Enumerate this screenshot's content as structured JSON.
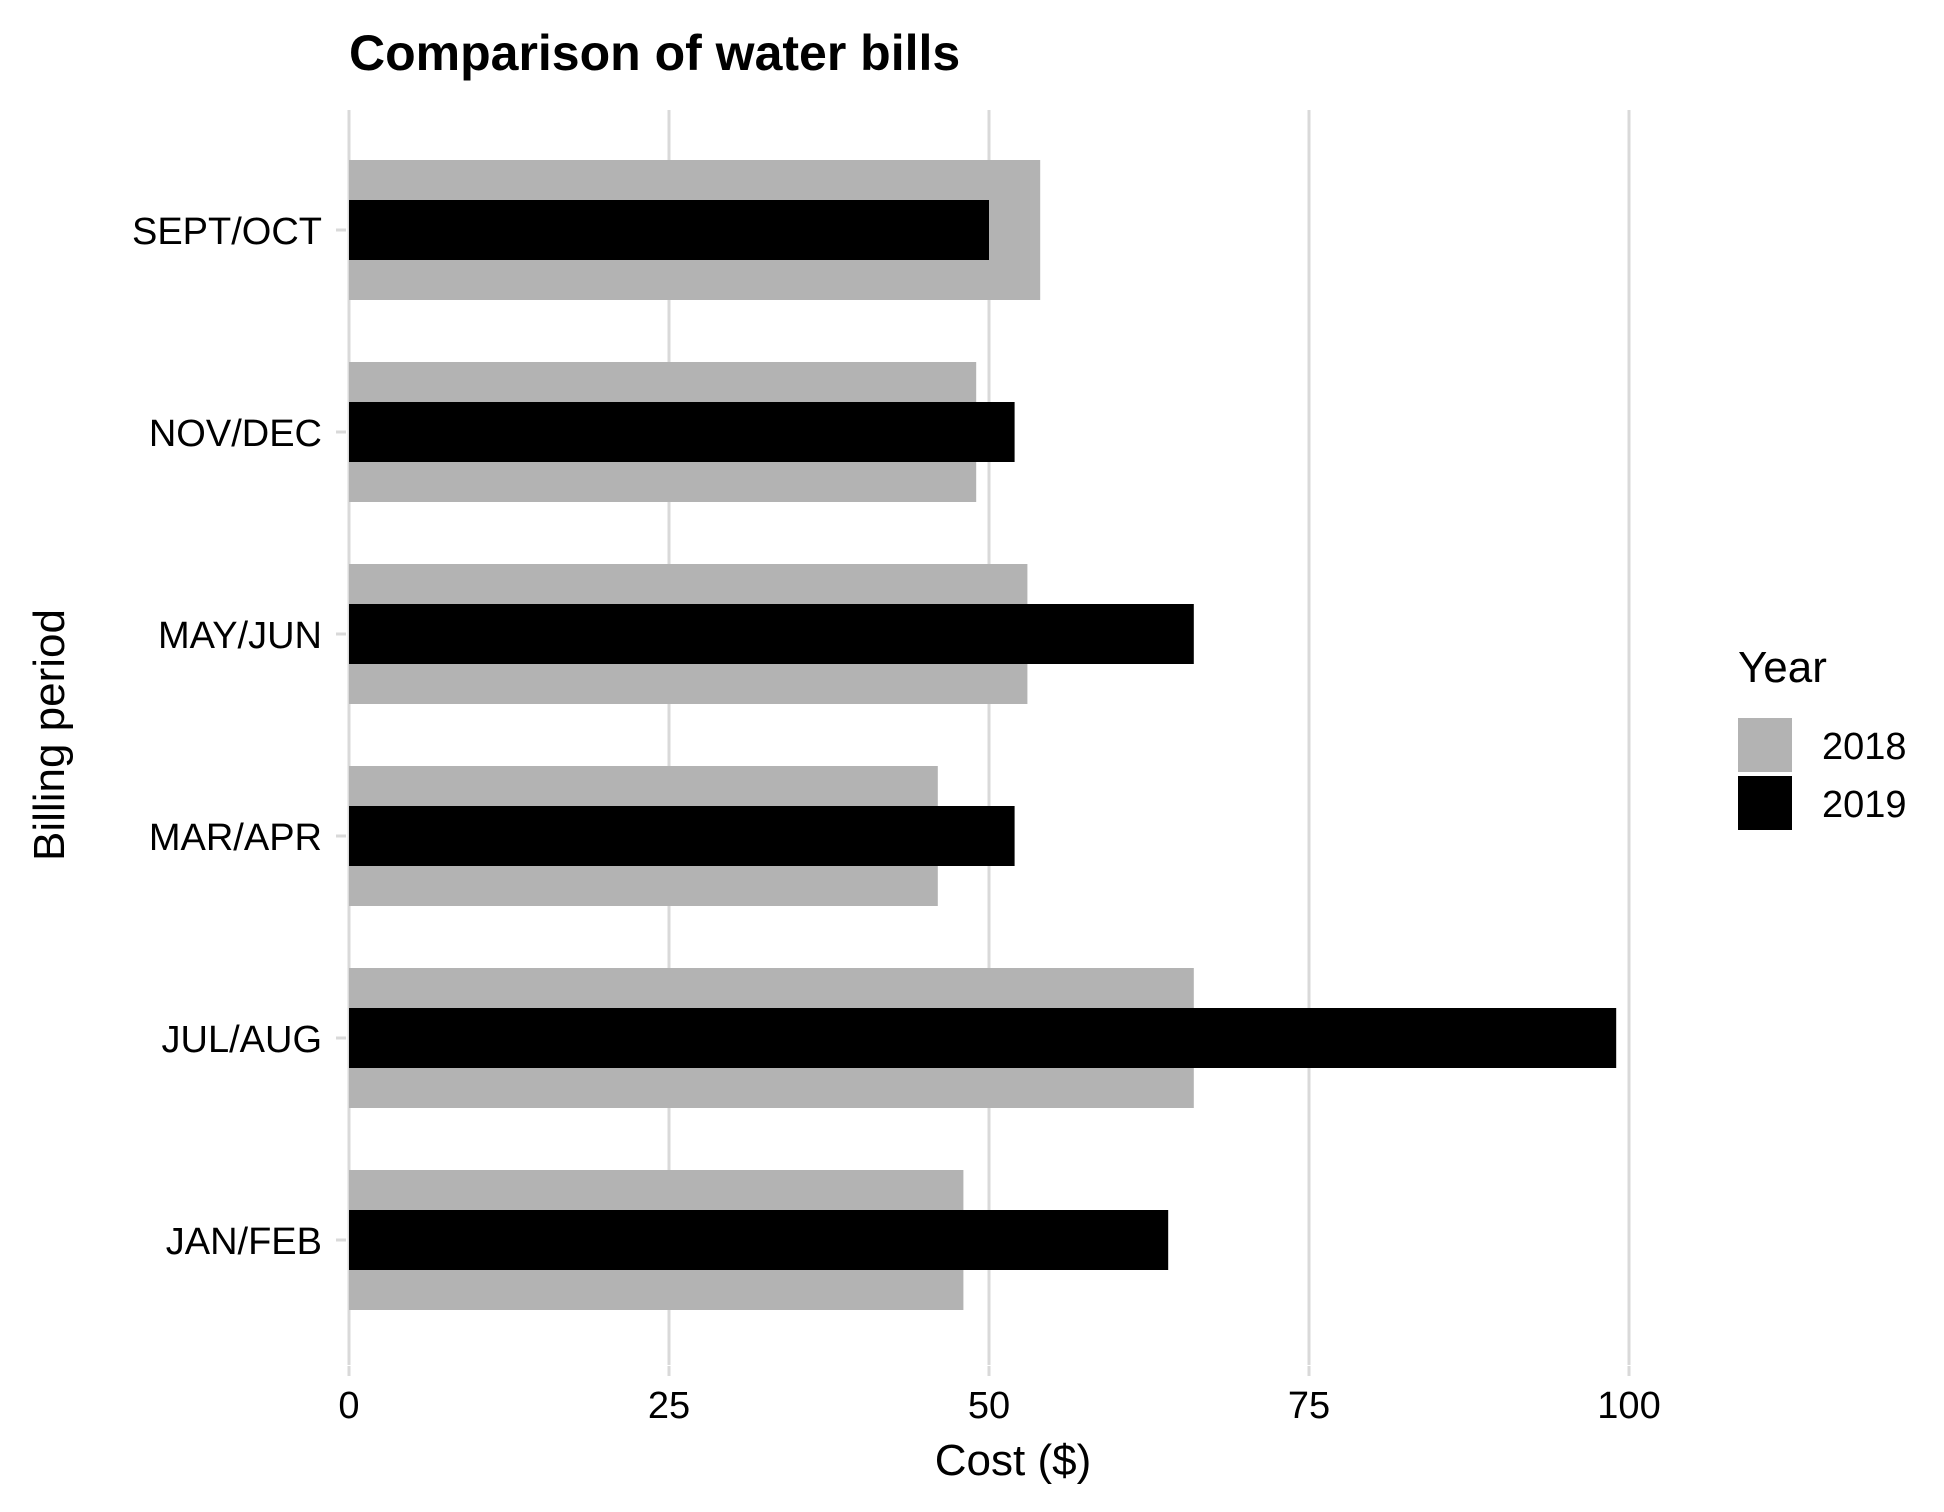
{
  "chart_data": {
    "type": "bar",
    "orientation": "horizontal",
    "title": "Comparison of water bills",
    "xlabel": "Cost ($)",
    "ylabel": "Billing period",
    "categories": [
      "JAN/FEB",
      "JUL/AUG",
      "MAR/APR",
      "MAY/JUN",
      "NOV/DEC",
      "SEPT/OCT"
    ],
    "xlim": [
      0,
      100
    ],
    "x_ticks": [
      "0",
      "25",
      "50",
      "75",
      "100"
    ],
    "grid": "vertical major",
    "legend": {
      "title": "Year",
      "placement": "right"
    },
    "series": [
      {
        "name": "2018",
        "color": "#b3b3b3",
        "values": [
          48,
          66,
          46,
          53,
          49,
          54
        ]
      },
      {
        "name": "2019",
        "color": "#000000",
        "values": [
          64,
          99,
          52,
          66,
          52,
          50
        ]
      }
    ]
  }
}
